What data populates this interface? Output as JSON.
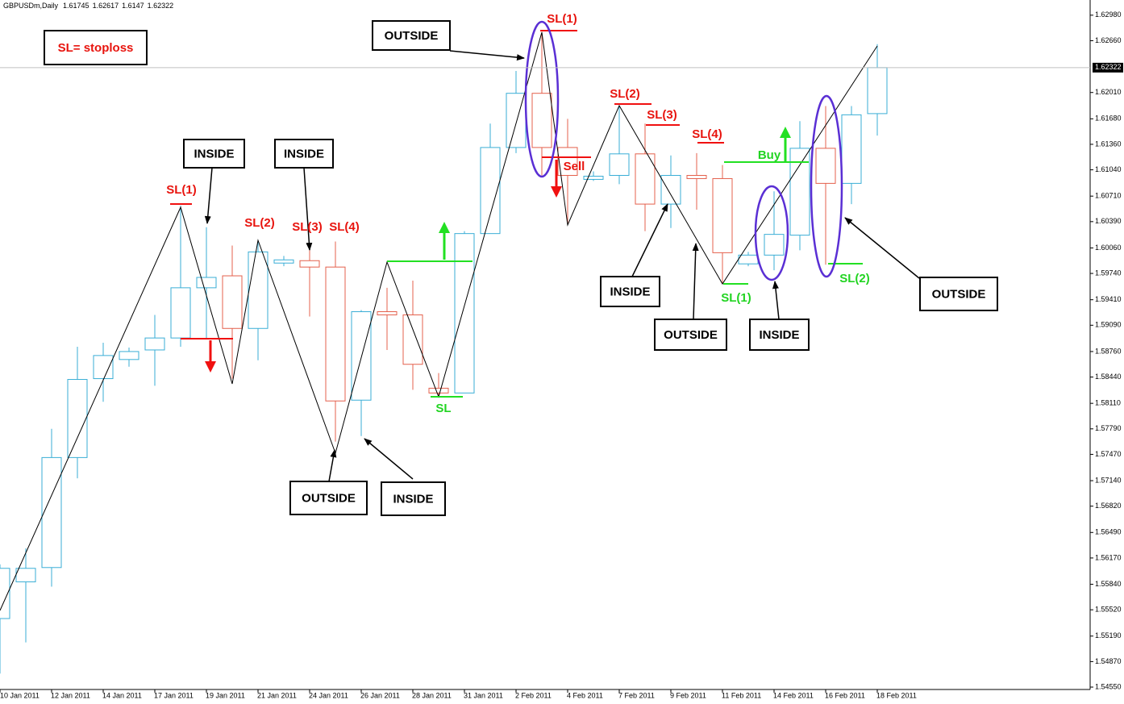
{
  "chart_data": {
    "type": "candlestick",
    "title": "GBPUSDm,Daily",
    "categories": [
      "10 Jan 2011",
      null,
      "12 Jan 2011",
      null,
      "14 Jan 2011",
      null,
      "17 Jan 2011",
      null,
      "19 Jan 2011",
      null,
      "21 Jan 2011",
      null,
      "24 Jan 2011",
      null,
      "26 Jan 2011",
      null,
      "28 Jan 2011",
      null,
      "31 Jan 2011",
      null,
      "2 Feb 2011",
      null,
      "4 Feb 2011",
      null,
      "7 Feb 2011",
      null,
      "9 Feb 2011",
      null,
      "11 Feb 2011",
      null,
      "14 Feb 2011",
      null,
      "16 Feb 2011",
      null,
      "18 Feb 2011"
    ],
    "open": [
      1.5541,
      1.5587,
      1.5605,
      1.5743,
      1.5842,
      1.5866,
      1.5878,
      1.5893,
      1.5956,
      1.5971,
      1.5905,
      1.5987,
      1.599,
      1.5982,
      1.5815,
      1.5926,
      1.5922,
      1.583,
      1.5824,
      1.6024,
      1.6132,
      1.62,
      1.6132,
      1.6092,
      1.6097,
      1.6124,
      1.6061,
      1.6097,
      1.6093,
      1.5986,
      1.5997,
      1.6022,
      1.6131,
      1.6087,
      1.61745
    ],
    "high": [
      1.5609,
      1.5629,
      1.5779,
      1.5882,
      1.5887,
      1.5881,
      1.5922,
      1.6059,
      1.6032,
      1.6009,
      1.6016,
      1.5996,
      1.6006,
      1.6014,
      1.5928,
      1.5956,
      1.5965,
      1.5849,
      1.6027,
      1.6162,
      1.6228,
      1.6277,
      1.6168,
      1.6102,
      1.6185,
      1.6162,
      1.6122,
      1.6125,
      1.611,
      1.6001,
      1.6077,
      1.6165,
      1.6184,
      1.6184,
      1.62617
    ],
    "low": [
      1.5472,
      1.5511,
      1.5581,
      1.5717,
      1.5813,
      1.5857,
      1.5833,
      1.5882,
      1.5892,
      1.5842,
      1.5865,
      1.5983,
      1.592,
      1.5763,
      1.577,
      1.5878,
      1.5828,
      1.5819,
      1.5824,
      1.6024,
      1.6125,
      1.6097,
      1.6037,
      1.609,
      1.6086,
      1.6027,
      1.6031,
      1.6054,
      1.5961,
      1.5983,
      1.5978,
      1.6003,
      1.5985,
      1.6061,
      1.6147
    ],
    "close": [
      1.5604,
      1.5604,
      1.5743,
      1.5841,
      1.5871,
      1.5876,
      1.5893,
      1.5956,
      1.5969,
      1.5905,
      1.6001,
      1.5991,
      1.5982,
      1.5814,
      1.5926,
      1.5922,
      1.586,
      1.5824,
      1.6024,
      1.6132,
      1.62,
      1.6132,
      1.6097,
      1.6096,
      1.6124,
      1.6061,
      1.6097,
      1.6093,
      1.6,
      1.5997,
      1.6023,
      1.6131,
      1.6087,
      1.6173,
      1.62322
    ],
    "up_color": "#3aaed6",
    "down_color": "#e4604c",
    "ylim": [
      1.5452,
      1.6312
    ],
    "yticks": [
      {
        "value": 1.6298,
        "label": "1.62980"
      },
      {
        "value": 1.6266,
        "label": "1.62660"
      },
      {
        "value": 1.6201,
        "label": "1.62010"
      },
      {
        "value": 1.6168,
        "label": "1.61680"
      },
      {
        "value": 1.6136,
        "label": "1.61360"
      },
      {
        "value": 1.6104,
        "label": "1.61040"
      },
      {
        "value": 1.6071,
        "label": "1.60710"
      },
      {
        "value": 1.6039,
        "label": "1.60390"
      },
      {
        "value": 1.6006,
        "label": "1.60060"
      },
      {
        "value": 1.5974,
        "label": "1.59740"
      },
      {
        "value": 1.5941,
        "label": "1.59410"
      },
      {
        "value": 1.5909,
        "label": "1.59090"
      },
      {
        "value": 1.5876,
        "label": "1.58760"
      },
      {
        "value": 1.5844,
        "label": "1.58440"
      },
      {
        "value": 1.5811,
        "label": "1.58110"
      },
      {
        "value": 1.5779,
        "label": "1.57790"
      },
      {
        "value": 1.5747,
        "label": "1.57470"
      },
      {
        "value": 1.5714,
        "label": "1.57140"
      },
      {
        "value": 1.5682,
        "label": "1.56820"
      },
      {
        "value": 1.5649,
        "label": "1.56490"
      },
      {
        "value": 1.5617,
        "label": "1.56170"
      },
      {
        "value": 1.5584,
        "label": "1.55840"
      },
      {
        "value": 1.5552,
        "label": "1.55520"
      },
      {
        "value": 1.5519,
        "label": "1.55190"
      },
      {
        "value": 1.5487,
        "label": "1.54870"
      },
      {
        "value": 1.5455,
        "label": "1.54550"
      }
    ],
    "annotations": [
      "SL= stoploss",
      "OUTSIDE",
      "INSIDE",
      "INSIDE",
      "OUTSIDE",
      "INSIDE",
      "INSIDE",
      "OUTSIDE",
      "INSIDE",
      "OUTSIDE",
      "SL(1)",
      "SL(2)",
      "SL(3)",
      "SL(4)",
      "SL(1)",
      "Sell",
      "SL(2)",
      "SL(3)",
      "SL(4)",
      "SL",
      "Buy",
      "SL(1)",
      "SL(2)"
    ]
  }
}
